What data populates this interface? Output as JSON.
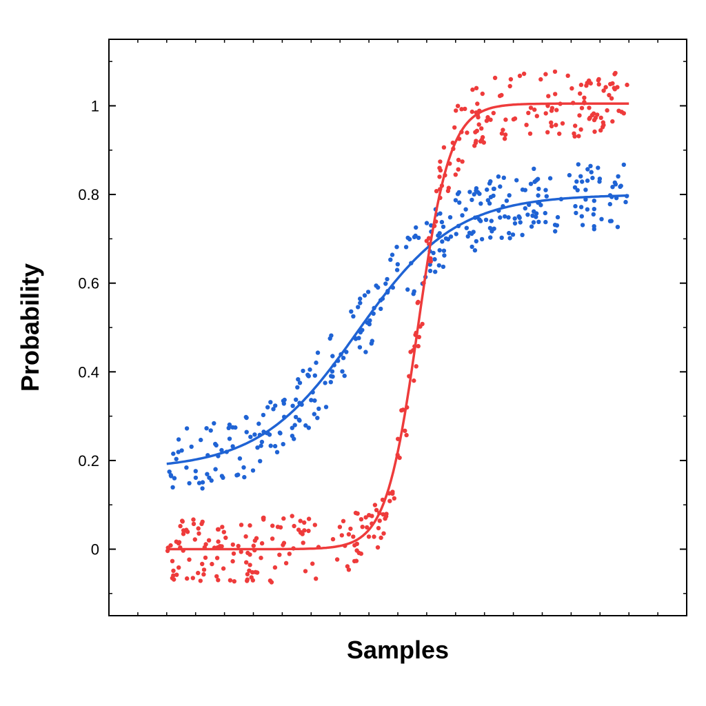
{
  "chart_data": {
    "type": "scatter",
    "title": "",
    "xlabel": "Samples",
    "ylabel": "Probability",
    "xlim": [
      -2,
      18
    ],
    "ylim": [
      -0.15,
      1.15
    ],
    "x_tick_labels_shown": false,
    "y_ticks": [
      {
        "value": 0,
        "label": "0"
      },
      {
        "value": 0.2,
        "label": "0.2"
      },
      {
        "value": 0.4,
        "label": "0.4"
      },
      {
        "value": 0.6,
        "label": "0.6"
      },
      {
        "value": 0.8,
        "label": "0.8"
      },
      {
        "value": 1,
        "label": "1"
      }
    ],
    "grid": false,
    "legend": "none",
    "series": [
      {
        "color": "#1f63d4",
        "curve": {
          "model": "logistic",
          "base": 0.18,
          "amplitude": 0.62,
          "midpoint": 6.6,
          "width": 1.7
        },
        "curve_x_range": [
          0,
          16
        ],
        "scatter_x_range": [
          0,
          16
        ],
        "scatter_points": 340,
        "scatter_spread": 0.075
      },
      {
        "color": "#ee3b3b",
        "curve": {
          "model": "logistic",
          "base": 0.0,
          "amplitude": 1.005,
          "midpoint": 8.7,
          "width": 0.55
        },
        "curve_x_range": [
          0,
          16
        ],
        "scatter_x_range": [
          0,
          16
        ],
        "scatter_points": 340,
        "scatter_spread": 0.075
      }
    ]
  }
}
